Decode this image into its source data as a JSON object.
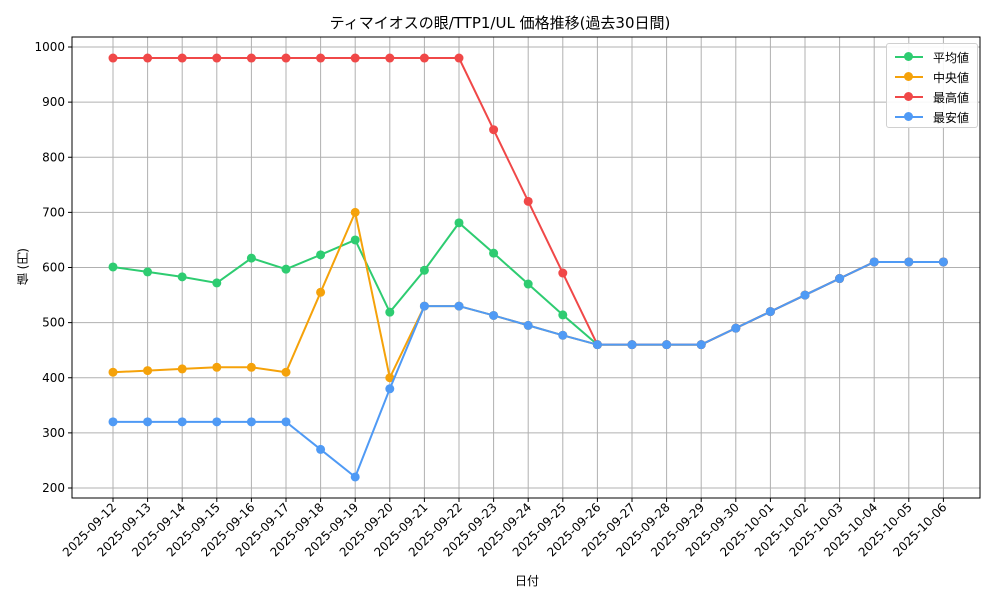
{
  "chart_data": {
    "type": "line",
    "title": "ティマイオスの眼/TTP1/UL 価格推移(過去30日間)",
    "xlabel": "日付",
    "ylabel": "値 (円)",
    "ylim": [
      180,
      1020
    ],
    "yticks": [
      200,
      300,
      400,
      500,
      600,
      700,
      800,
      900,
      1000
    ],
    "grid": true,
    "legend_position": "upper right",
    "x": [
      "2025-09-12",
      "2025-09-13",
      "2025-09-14",
      "2025-09-15",
      "2025-09-16",
      "2025-09-17",
      "2025-09-18",
      "2025-09-19",
      "2025-09-20",
      "2025-09-21",
      "2025-09-22",
      "2025-09-23",
      "2025-09-24",
      "2025-09-25",
      "2025-09-26",
      "2025-09-27",
      "2025-09-28",
      "2025-09-29",
      "2025-09-30",
      "2025-10-01",
      "2025-10-02",
      "2025-10-03",
      "2025-10-04",
      "2025-10-05",
      "2025-10-06"
    ],
    "series": [
      {
        "name": "平均値",
        "color": "#2ecc71",
        "values": [
          601,
          592,
          583,
          572,
          617,
          597,
          623,
          650,
          519,
          595,
          681,
          626,
          570,
          514,
          460,
          460,
          460,
          460,
          490,
          520,
          550,
          580,
          610,
          610,
          610
        ]
      },
      {
        "name": "中央値",
        "color": "#f5a20a",
        "values": [
          410,
          413,
          416,
          419,
          419,
          410,
          555,
          700,
          400,
          530,
          530,
          513,
          495,
          477,
          460,
          460,
          460,
          460,
          490,
          520,
          550,
          580,
          610,
          610,
          610
        ]
      },
      {
        "name": "最高値",
        "color": "#f04848",
        "values": [
          980,
          980,
          980,
          980,
          980,
          980,
          980,
          980,
          980,
          980,
          980,
          850,
          720,
          590,
          460,
          460,
          460,
          460,
          490,
          520,
          550,
          580,
          610,
          610,
          610
        ]
      },
      {
        "name": "最安値",
        "color": "#4f9af5",
        "values": [
          320,
          320,
          320,
          320,
          320,
          320,
          270,
          220,
          380,
          530,
          530,
          513,
          495,
          477,
          460,
          460,
          460,
          460,
          490,
          520,
          550,
          580,
          610,
          610,
          610
        ]
      }
    ]
  },
  "legend": {
    "items": [
      {
        "label": "平均値",
        "color": "#2ecc71"
      },
      {
        "label": "中央値",
        "color": "#f5a20a"
      },
      {
        "label": "最高値",
        "color": "#f04848"
      },
      {
        "label": "最安値",
        "color": "#4f9af5"
      }
    ]
  }
}
